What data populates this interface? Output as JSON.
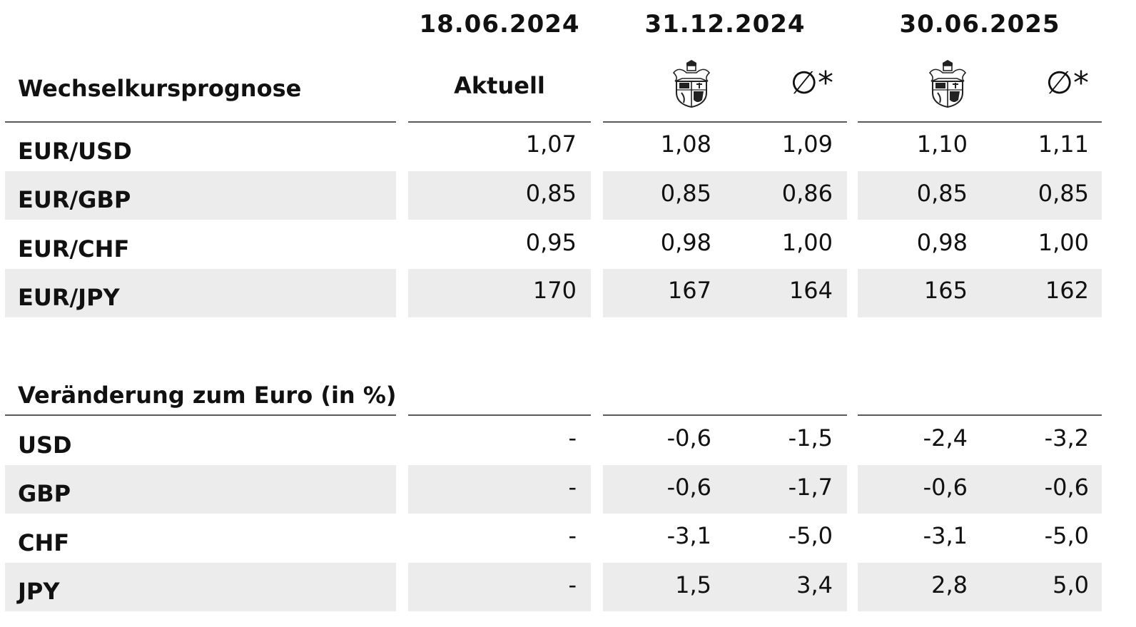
{
  "header": {
    "dates": [
      "18.06.2024",
      "31.12.2024",
      "30.06.2025"
    ],
    "section1_title": "Wechselkursprognose",
    "current_label": "Aktuell",
    "forecast_icon": "bank-crest-icon",
    "consensus_label": "∅*"
  },
  "rates": [
    {
      "label": "EUR/USD",
      "values": [
        "1,07",
        "1,08",
        "1,09",
        "1,10",
        "1,11"
      ]
    },
    {
      "label": "EUR/GBP",
      "values": [
        "0,85",
        "0,85",
        "0,86",
        "0,85",
        "0,85"
      ]
    },
    {
      "label": "EUR/CHF",
      "values": [
        "0,95",
        "0,98",
        "1,00",
        "0,98",
        "1,00"
      ]
    },
    {
      "label": "EUR/JPY",
      "values": [
        "170",
        "167",
        "164",
        "165",
        "162"
      ]
    }
  ],
  "section2_title": "Veränderung zum Euro (in %)",
  "changes": [
    {
      "label": "USD",
      "values": [
        "-",
        "-0,6",
        "-1,5",
        "-2,4",
        "-3,2"
      ]
    },
    {
      "label": "GBP",
      "values": [
        "-",
        "-0,6",
        "-1,7",
        "-0,6",
        "-0,6"
      ]
    },
    {
      "label": "CHF",
      "values": [
        "-",
        "-3,1",
        "-5,0",
        "-3,1",
        "-5,0"
      ]
    },
    {
      "label": "JPY",
      "values": [
        "-",
        "1,5",
        "3,4",
        "2,8",
        "5,0"
      ]
    }
  ],
  "colors": {
    "band": "#ececec",
    "rule": "#5a5a5a",
    "text": "#111111"
  }
}
